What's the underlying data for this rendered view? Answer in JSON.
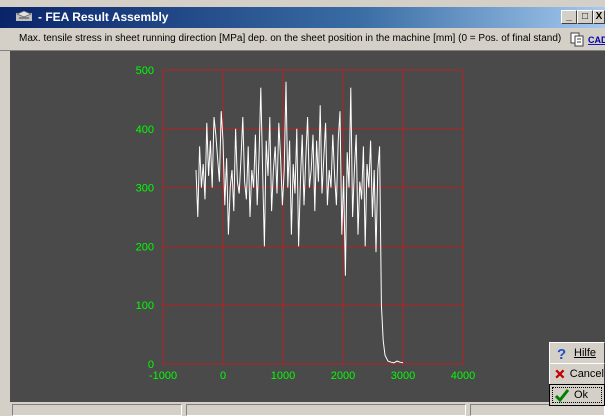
{
  "window": {
    "title": "- FEA Result Assembly",
    "min_label": "_",
    "max_label": "□",
    "close_label": "X"
  },
  "infobar": {
    "description": "Max. tensile stress in sheet running direction [MPa] dep. on the sheet position in the machine [mm] (0 = Pos. of final stand)",
    "icons": [
      "copy-icon",
      "cad-icon"
    ]
  },
  "buttons": {
    "help_label": "Hilfe",
    "cancel_label": "Cancel",
    "ok_label": "Ok"
  },
  "colors": {
    "plot_background": "#4a4a4a",
    "grid": "#b22222",
    "tick_labels": "#00ff00",
    "series": "#ffffff"
  },
  "chart_data": {
    "type": "line",
    "title": "",
    "xlabel": "",
    "ylabel": "",
    "xlim": [
      -1000,
      4000
    ],
    "ylim": [
      0,
      500
    ],
    "x_ticks": [
      -1000,
      0,
      1000,
      2000,
      3000,
      4000
    ],
    "y_ticks": [
      0,
      100,
      200,
      300,
      400,
      500
    ],
    "grid": true,
    "series": [
      {
        "values_x": [
          -450,
          -420,
          -390,
          -360,
          -330,
          -300,
          -270,
          -240,
          -210,
          -180,
          -150,
          -120,
          -90,
          -60,
          -30,
          0,
          30,
          60,
          90,
          120,
          150,
          180,
          210,
          240,
          270,
          300,
          330,
          360,
          390,
          420,
          450,
          480,
          510,
          540,
          570,
          600,
          630,
          660,
          690,
          720,
          750,
          780,
          810,
          840,
          870,
          900,
          930,
          960,
          990,
          1020,
          1050,
          1080,
          1110,
          1140,
          1170,
          1200,
          1230,
          1260,
          1290,
          1320,
          1350,
          1380,
          1410,
          1440,
          1470,
          1500,
          1530,
          1560,
          1590,
          1620,
          1650,
          1680,
          1710,
          1740,
          1770,
          1800,
          1830,
          1860,
          1890,
          1920,
          1950,
          1980,
          2010,
          2040,
          2070,
          2100,
          2130,
          2160,
          2190,
          2220,
          2250,
          2280,
          2310,
          2340,
          2370,
          2400,
          2430,
          2460,
          2490,
          2520,
          2550,
          2580,
          2610,
          2640,
          2670,
          2700,
          2750,
          2800,
          2850,
          2900,
          2950,
          3000
        ],
        "values_y": [
          330,
          250,
          370,
          300,
          340,
          280,
          410,
          320,
          380,
          300,
          420,
          390,
          350,
          310,
          430,
          380,
          270,
          350,
          220,
          300,
          330,
          260,
          400,
          310,
          290,
          350,
          420,
          310,
          280,
          370,
          250,
          330,
          300,
          390,
          270,
          350,
          470,
          330,
          200,
          380,
          320,
          420,
          260,
          330,
          370,
          290,
          410,
          350,
          270,
          330,
          480,
          300,
          380,
          220,
          340,
          290,
          400,
          200,
          310,
          390,
          270,
          350,
          420,
          300,
          330,
          390,
          260,
          380,
          310,
          440,
          290,
          350,
          410,
          270,
          330,
          300,
          390,
          320,
          270,
          380,
          430,
          220,
          320,
          150,
          360,
          300,
          470,
          250,
          330,
          390,
          220,
          310,
          280,
          370,
          200,
          340,
          300,
          380,
          250,
          330,
          190,
          330,
          370,
          100,
          40,
          15,
          5,
          3,
          2,
          5,
          3,
          2
        ]
      }
    ]
  }
}
